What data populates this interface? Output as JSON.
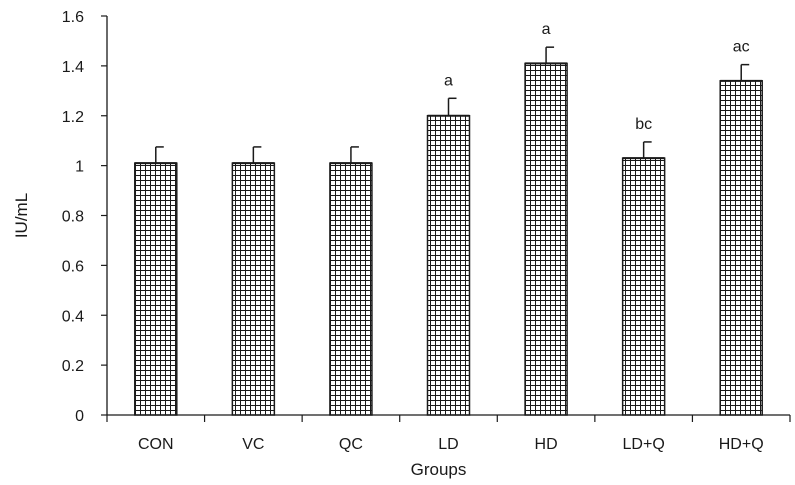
{
  "chart_data": {
    "type": "bar",
    "xlabel": "Groups",
    "ylabel": "IU/mL",
    "ylim": [
      0,
      1.6
    ],
    "yticks": [
      "0",
      "0.2",
      "0.4",
      "0.6",
      "0.8",
      "1",
      "1.2",
      "1.4",
      "1.6"
    ],
    "categories": [
      "CON",
      "VC",
      "QC",
      "LD",
      "HD",
      "LD+Q",
      "HD+Q"
    ],
    "values": [
      1.01,
      1.01,
      1.01,
      1.2,
      1.41,
      1.03,
      1.34
    ],
    "errors": [
      0.065,
      0.065,
      0.065,
      0.07,
      0.065,
      0.065,
      0.065
    ],
    "annotations": [
      "",
      "",
      "",
      "a",
      "a",
      "bc",
      "ac"
    ],
    "bar_pattern": "grid hatch",
    "colors": {
      "bar_fill": "#ffffff",
      "hatch": "#1a1a1a",
      "axis": "#1a1a1a"
    },
    "grid": false,
    "legend": "none"
  }
}
